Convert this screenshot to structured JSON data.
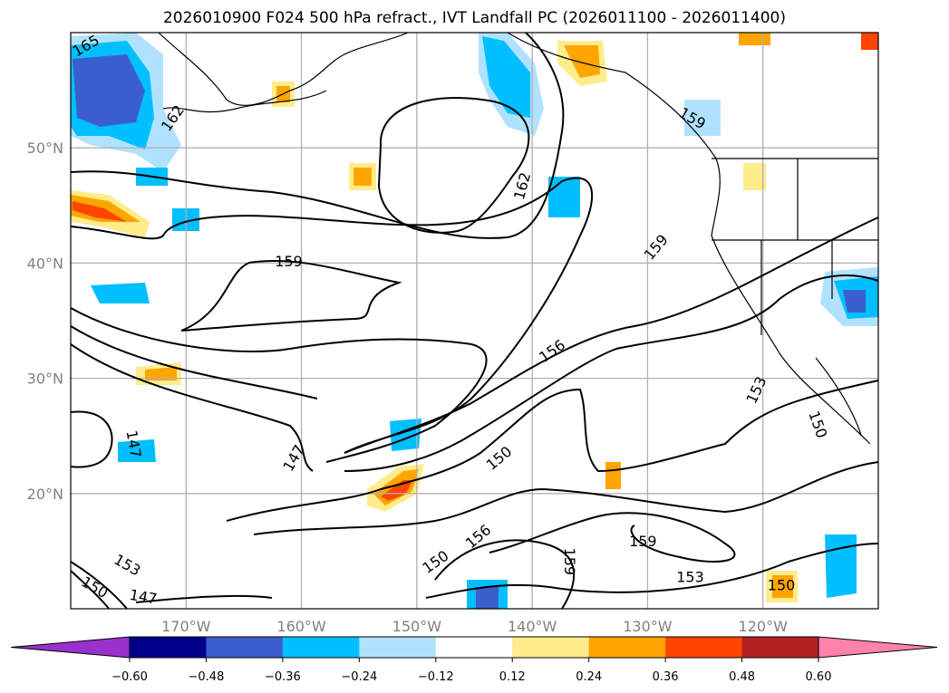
{
  "chart_data": {
    "type": "map-contour",
    "title": "2026010900 F024 500 hPa refract., IVT Landfall PC (2026011100 - 2026011400)",
    "extent": {
      "lon": [
        -180,
        -110
      ],
      "lat": [
        10,
        60
      ]
    },
    "x_ticks": [
      {
        "lon": -170,
        "label": "170°W"
      },
      {
        "lon": -160,
        "label": "160°W"
      },
      {
        "lon": -150,
        "label": "150°W"
      },
      {
        "lon": -140,
        "label": "140°W"
      },
      {
        "lon": -130,
        "label": "130°W"
      },
      {
        "lon": -120,
        "label": "120°W"
      }
    ],
    "y_ticks": [
      {
        "lat": 50,
        "label": "50°N"
      },
      {
        "lat": 40,
        "label": "40°N"
      },
      {
        "lat": 30,
        "label": "30°N"
      },
      {
        "lat": 20,
        "label": "20°N"
      }
    ],
    "grid": true,
    "contour_labels": [
      {
        "text": "165",
        "lon": -178.7,
        "lat": 58.9,
        "rot": -30
      },
      {
        "text": "162",
        "lon": -171.2,
        "lat": 52.6,
        "rot": -55
      },
      {
        "text": "162",
        "lon": -140.9,
        "lat": 46.7,
        "rot": -75
      },
      {
        "text": "159",
        "lon": -161.1,
        "lat": 40.2,
        "rot": 0
      },
      {
        "text": "159",
        "lon": -129.3,
        "lat": 41.4,
        "rot": -50
      },
      {
        "text": "159",
        "lon": -126.1,
        "lat": 52.6,
        "rot": 30
      },
      {
        "text": "156",
        "lon": -138.3,
        "lat": 32.4,
        "rot": -35
      },
      {
        "text": "153",
        "lon": -120.6,
        "lat": 29.0,
        "rot": -65
      },
      {
        "text": "150",
        "lon": -115.2,
        "lat": 26.0,
        "rot": 70
      },
      {
        "text": "150",
        "lon": -142.9,
        "lat": 23.1,
        "rot": -40
      },
      {
        "text": "147",
        "lon": -160.7,
        "lat": 23.1,
        "rot": -60
      },
      {
        "text": "147",
        "lon": -174.5,
        "lat": 24.3,
        "rot": 80
      },
      {
        "text": "159",
        "lon": -136.7,
        "lat": 14.1,
        "rot": 90
      },
      {
        "text": "159",
        "lon": -130.4,
        "lat": 15.9,
        "rot": 0
      },
      {
        "text": "153",
        "lon": -126.3,
        "lat": 12.8,
        "rot": 0
      },
      {
        "text": "150",
        "lon": -118.4,
        "lat": 12.1,
        "rot": 0
      },
      {
        "text": "156",
        "lon": -144.7,
        "lat": 16.3,
        "rot": -40
      },
      {
        "text": "150",
        "lon": -148.4,
        "lat": 14.1,
        "rot": -35
      },
      {
        "text": "150",
        "lon": -177.9,
        "lat": 11.9,
        "rot": 30
      },
      {
        "text": "153",
        "lon": -177.9,
        "lat": 11.0,
        "rot": 30
      },
      {
        "text": "147",
        "lon": -173.7,
        "lat": 10.6,
        "rot": 10
      }
    ],
    "colorbar": {
      "boundaries": [
        -0.6,
        -0.48,
        -0.36,
        -0.24,
        -0.12,
        0.12,
        0.24,
        0.36,
        0.48,
        0.6
      ],
      "tick_labels": [
        "−0.60",
        "−0.48",
        "−0.36",
        "−0.24",
        "−0.12",
        "0.12",
        "0.24",
        "0.36",
        "0.48",
        "0.60"
      ],
      "colors": [
        "#9932cc",
        "#00008b",
        "#3a5fcd",
        "#00bfff",
        "#b0e2ff",
        "#ffffff",
        "#ffec8b",
        "#ffa500",
        "#ff4500",
        "#b22222",
        "#ff82ab"
      ],
      "extend": "both"
    }
  }
}
